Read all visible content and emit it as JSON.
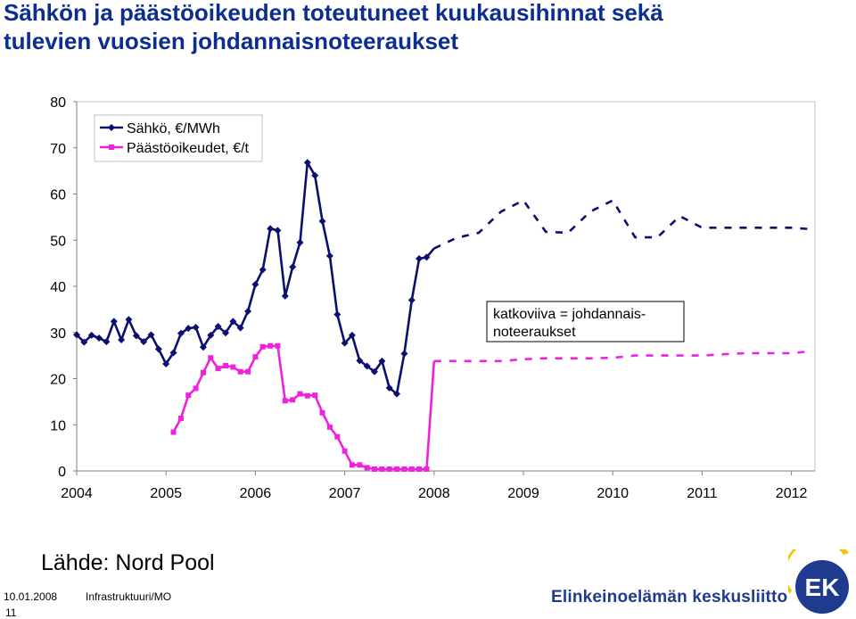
{
  "title": {
    "line1": "Sähkön ja päästöoikeuden toteutuneet kuukausihinnat sekä",
    "line2": "tulevien vuosien johdannaisnoteeraukset"
  },
  "source": "Lähde: Nord Pool",
  "footer": {
    "date": "10.01.2008",
    "dept": "Infrastruktuuri/MO",
    "page": "11",
    "brand": "Elinkeinoelämän keskusliitto",
    "logo_text": "EK"
  },
  "colors": {
    "title": "#0c2f8f",
    "electricity": "#0b0f6e",
    "emissions": "#ee22dd",
    "brand": "#1f3b8f",
    "logo_yellow": "#f5c400",
    "logo_blue": "#1f3b8f"
  },
  "chart_data": {
    "type": "line",
    "ylim": [
      0,
      80
    ],
    "yticks": [
      "0",
      "10",
      "20",
      "30",
      "40",
      "50",
      "60",
      "70",
      "80"
    ],
    "xlim": [
      2004,
      2012.2
    ],
    "xticks": [
      "2004",
      "2005",
      "2006",
      "2007",
      "2008",
      "2009",
      "2010",
      "2011",
      "2012"
    ],
    "legend_position": "top-left",
    "grid": false,
    "annotation": "katkoviiva = johdannais-\nnoteeraukset",
    "series": [
      {
        "name": "Sähkö, €/MWh",
        "color": "#0b0f6e",
        "marker": "diamond",
        "actual": {
          "x": [
            2004.0,
            2004.083,
            2004.167,
            2004.25,
            2004.333,
            2004.417,
            2004.5,
            2004.583,
            2004.667,
            2004.75,
            2004.833,
            2004.917,
            2005.0,
            2005.083,
            2005.167,
            2005.25,
            2005.333,
            2005.417,
            2005.5,
            2005.583,
            2005.667,
            2005.75,
            2005.833,
            2005.917,
            2006.0,
            2006.083,
            2006.167,
            2006.25,
            2006.333,
            2006.417,
            2006.5,
            2006.583,
            2006.667,
            2006.75,
            2006.833,
            2006.917,
            2007.0,
            2007.083,
            2007.167,
            2007.25,
            2007.333,
            2007.417,
            2007.5,
            2007.583,
            2007.667,
            2007.75,
            2007.833,
            2007.917
          ],
          "y": [
            29.5,
            27.9,
            29.4,
            28.8,
            28.0,
            32.4,
            28.4,
            32.8,
            29.3,
            28.0,
            29.5,
            26.4,
            23.2,
            25.6,
            29.8,
            30.9,
            31.1,
            26.8,
            29.4,
            31.3,
            29.9,
            32.4,
            31.0,
            34.6,
            40.4,
            43.6,
            52.5,
            52.1,
            37.9,
            44.2,
            49.5,
            66.8,
            64.0,
            54.1,
            46.6,
            33.9,
            27.7,
            29.4,
            23.9,
            22.7,
            21.5,
            23.8,
            18.0,
            16.7,
            25.4,
            37.0,
            46.0,
            46.3
          ]
        },
        "forecast": {
          "x": [
            2008.0,
            2008.25,
            2008.5,
            2008.75,
            2009.0,
            2009.25,
            2009.5,
            2009.75,
            2010.0,
            2010.25,
            2010.5,
            2010.75,
            2011.0,
            2011.25,
            2011.5,
            2011.75,
            2012.0,
            2012.2
          ],
          "y": [
            48.2,
            50.5,
            51.6,
            56.2,
            58.6,
            51.8,
            51.6,
            56.2,
            58.6,
            50.6,
            50.6,
            55.2,
            52.7,
            52.7,
            52.7,
            52.7,
            52.7,
            52.4
          ]
        }
      },
      {
        "name": "Päästöoikeudet, €/t",
        "color": "#ee22dd",
        "marker": "square",
        "actual": {
          "x": [
            2005.083,
            2005.167,
            2005.25,
            2005.333,
            2005.417,
            2005.5,
            2005.583,
            2005.667,
            2005.75,
            2005.833,
            2005.917,
            2006.0,
            2006.083,
            2006.167,
            2006.25,
            2006.333,
            2006.417,
            2006.5,
            2006.583,
            2006.667,
            2006.75,
            2006.833,
            2006.917,
            2007.0,
            2007.083,
            2007.167,
            2007.25,
            2007.333,
            2007.417,
            2007.5,
            2007.583,
            2007.667,
            2007.75,
            2007.833,
            2007.917
          ],
          "y": [
            8.4,
            11.4,
            16.4,
            17.9,
            21.3,
            24.5,
            22.2,
            22.8,
            22.5,
            21.5,
            21.5,
            24.7,
            26.9,
            27.1,
            27.1,
            15.2,
            15.4,
            16.7,
            16.3,
            16.4,
            12.6,
            9.5,
            7.4,
            4.3,
            1.3,
            1.3,
            0.7,
            0.4,
            0.4,
            0.4,
            0.4,
            0.4,
            0.4,
            0.4,
            0.4
          ]
        },
        "forecast": {
          "x": [
            2008.0,
            2008.25,
            2008.5,
            2008.75,
            2009.0,
            2009.25,
            2009.5,
            2009.75,
            2010.0,
            2010.25,
            2010.5,
            2010.75,
            2011.0,
            2011.25,
            2011.5,
            2011.75,
            2012.0,
            2012.2
          ],
          "y": [
            23.8,
            23.8,
            23.8,
            23.8,
            24.2,
            24.4,
            24.4,
            24.4,
            24.5,
            25.0,
            25.0,
            25.0,
            25.0,
            25.3,
            25.5,
            25.5,
            25.5,
            25.9
          ]
        }
      }
    ]
  }
}
